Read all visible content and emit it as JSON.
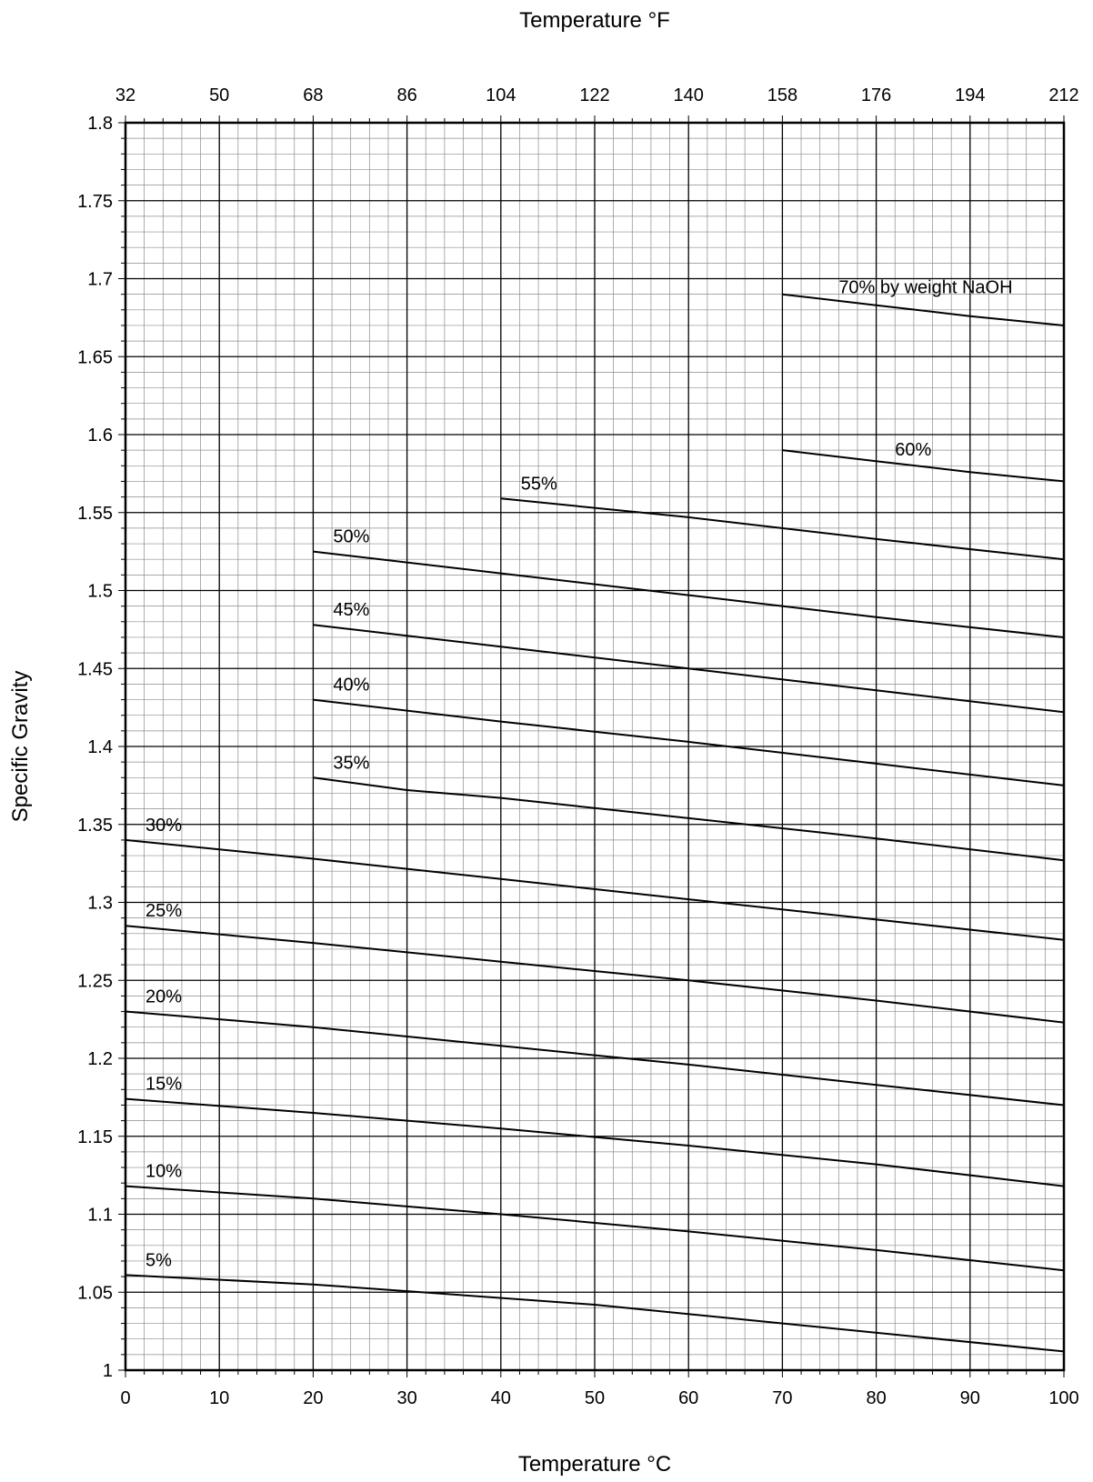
{
  "chart_data": {
    "type": "line",
    "title": "",
    "xlabel": "Temperature °C",
    "x2label": "Temperature °F",
    "ylabel": "Specific Gravity",
    "xlim": [
      0,
      100
    ],
    "ylim": [
      1,
      1.8
    ],
    "grid": true,
    "legend": "none",
    "x_ticks": [
      "0",
      "10",
      "20",
      "30",
      "40",
      "50",
      "60",
      "70",
      "80",
      "90",
      "100"
    ],
    "x2_ticks": [
      "32",
      "50",
      "68",
      "86",
      "104",
      "122",
      "140",
      "158",
      "176",
      "194",
      "212"
    ],
    "y_ticks": [
      "1",
      "1.05",
      "1.1",
      "1.15",
      "1.2",
      "1.25",
      "1.3",
      "1.35",
      "1.4",
      "1.45",
      "1.5",
      "1.55",
      "1.6",
      "1.65",
      "1.7",
      "1.75",
      "1.8"
    ],
    "series": [
      {
        "name": "5%",
        "x": [
          0,
          20,
          50,
          100
        ],
        "y": [
          1.061,
          1.055,
          1.042,
          1.012
        ]
      },
      {
        "name": "10%",
        "x": [
          0,
          20,
          40,
          60,
          80,
          100
        ],
        "y": [
          1.118,
          1.11,
          1.1,
          1.089,
          1.077,
          1.064
        ]
      },
      {
        "name": "15%",
        "x": [
          0,
          20,
          40,
          60,
          80,
          100
        ],
        "y": [
          1.174,
          1.165,
          1.155,
          1.144,
          1.132,
          1.118
        ]
      },
      {
        "name": "20%",
        "x": [
          0,
          20,
          40,
          60,
          80,
          100
        ],
        "y": [
          1.23,
          1.22,
          1.208,
          1.196,
          1.183,
          1.17
        ]
      },
      {
        "name": "25%",
        "x": [
          0,
          20,
          40,
          60,
          80,
          100
        ],
        "y": [
          1.285,
          1.274,
          1.262,
          1.25,
          1.237,
          1.223
        ]
      },
      {
        "name": "30%",
        "x": [
          0,
          20,
          40,
          60,
          80,
          100
        ],
        "y": [
          1.34,
          1.328,
          1.315,
          1.302,
          1.289,
          1.276
        ]
      },
      {
        "name": "35%",
        "x": [
          20,
          30,
          40,
          60,
          80,
          100
        ],
        "y": [
          1.38,
          1.372,
          1.367,
          1.354,
          1.341,
          1.327
        ]
      },
      {
        "name": "40%",
        "x": [
          20,
          40,
          60,
          80,
          100
        ],
        "y": [
          1.43,
          1.416,
          1.403,
          1.389,
          1.375
        ]
      },
      {
        "name": "45%",
        "x": [
          20,
          40,
          60,
          80,
          100
        ],
        "y": [
          1.478,
          1.464,
          1.45,
          1.436,
          1.422
        ]
      },
      {
        "name": "50%",
        "x": [
          20,
          40,
          60,
          80,
          100
        ],
        "y": [
          1.525,
          1.511,
          1.497,
          1.483,
          1.47
        ]
      },
      {
        "name": "55%",
        "x": [
          40,
          60,
          80,
          100
        ],
        "y": [
          1.559,
          1.547,
          1.533,
          1.52
        ]
      },
      {
        "name": "60%",
        "x": [
          70,
          80,
          90,
          100
        ],
        "y": [
          1.59,
          1.583,
          1.576,
          1.57
        ]
      },
      {
        "name": "70% by weight NaOH",
        "x": [
          70,
          80,
          90,
          100
        ],
        "y": [
          1.69,
          1.683,
          1.676,
          1.67
        ]
      }
    ]
  }
}
